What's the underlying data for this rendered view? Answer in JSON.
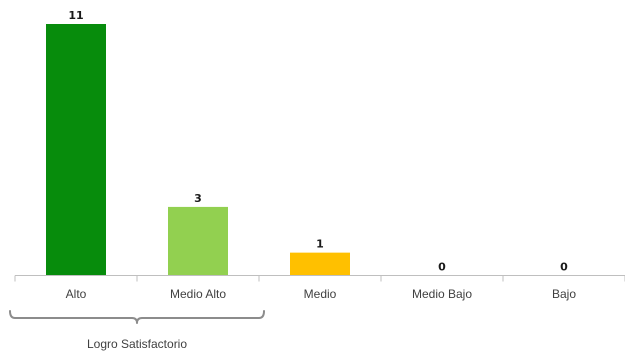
{
  "chart_data": {
    "type": "bar",
    "categories": [
      "Alto",
      "Medio Alto",
      "Medio",
      "Medio Bajo",
      "Bajo"
    ],
    "values": [
      11,
      3,
      1,
      0,
      0
    ],
    "colors": [
      "#078c0c",
      "#92d050",
      "#ffc000",
      "#a6a6a6",
      "#a6a6a6"
    ],
    "ylim": [
      0,
      11
    ],
    "grid": false,
    "legend": "none",
    "group_bracket": {
      "label": "Logro Satisfactorio",
      "categories": [
        "Alto",
        "Medio Alto"
      ]
    }
  }
}
